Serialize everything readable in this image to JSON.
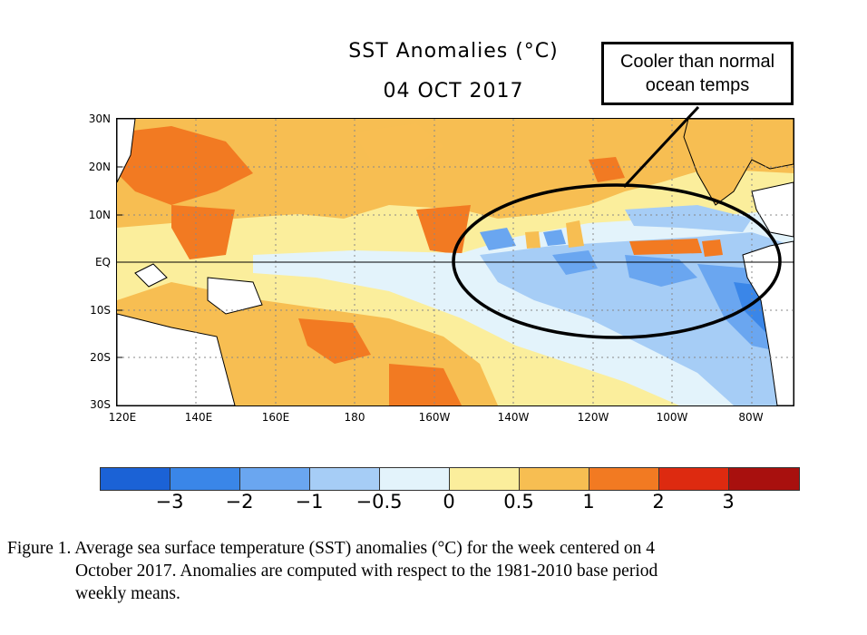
{
  "title": {
    "line1": "SST Anomalies (°C)",
    "line2": "04 OCT 2017"
  },
  "callout": {
    "line1": "Cooler than normal",
    "line2": "ocean temps"
  },
  "axes": {
    "y_ticks": [
      "30N",
      "20N",
      "10N",
      "EQ",
      "10S",
      "20S",
      "30S"
    ],
    "x_ticks": [
      "120E",
      "140E",
      "160E",
      "180",
      "160W",
      "140W",
      "120W",
      "100W",
      "80W"
    ]
  },
  "colorbar": {
    "labels": [
      "−3",
      "−2",
      "−1",
      "−0.5",
      "0",
      "0.5",
      "1",
      "2",
      "3"
    ],
    "colors": [
      "#1b62d6",
      "#3a86e8",
      "#6aa6f0",
      "#a6cdf6",
      "#e3f3fb",
      "#fbee9c",
      "#f7be52",
      "#f27a22",
      "#dd2a10",
      "#a8100e"
    ]
  },
  "caption": {
    "line1": "Figure 1. Average sea surface temperature (SST) anomalies (°C) for the week centered on 4",
    "line2": "October 2017.  Anomalies are computed with respect to the 1981-2010 base period",
    "line3": "weekly means."
  }
}
